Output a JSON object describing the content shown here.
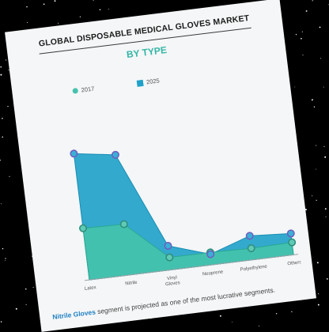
{
  "card": {
    "title": "GLOBAL DISPOSABLE MEDICAL GLOVES MARKET",
    "subtitle": "BY TYPE",
    "footnote_highlight": "Nitrile Gloves",
    "footnote_rest": " segment is projected as one of the most lucrative segments."
  },
  "colors": {
    "series_2017": "#45c2ad",
    "series_2025": "#1fa1c9",
    "marker_2025": "#6f5fbf",
    "background": "#000000"
  },
  "chart_data": {
    "type": "area",
    "categories": [
      "Latex",
      "Nitrile",
      "Vinyl Gloves",
      "Neoprene",
      "Polyethylene",
      "Others"
    ],
    "series": [
      {
        "name": "2017",
        "values": [
          58,
          57,
          14,
          14,
          13,
          14
        ]
      },
      {
        "name": "2025",
        "values": [
          142,
          135,
          27,
          12,
          27,
          24
        ]
      }
    ],
    "ylim": [
      0,
      150
    ],
    "grid": false,
    "legend": "top-left"
  }
}
